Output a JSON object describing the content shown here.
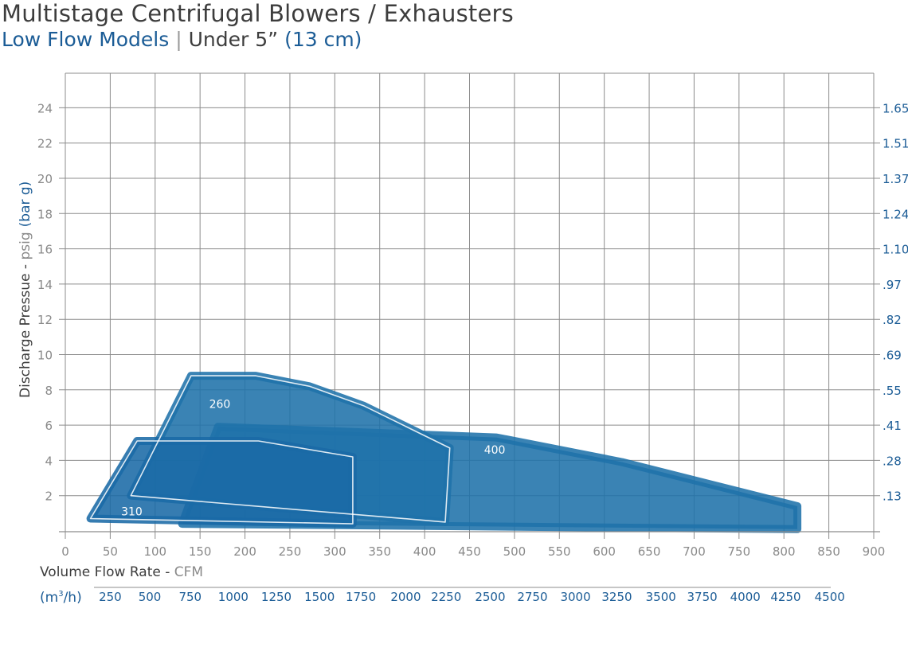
{
  "header": {
    "title": "Multistage Centrifugal Blowers / Exhausters",
    "subtitle_part1": "Low Flow Models",
    "subtitle_sep": "|",
    "subtitle_part2": "Under 5”",
    "subtitle_part3": "(13 cm)"
  },
  "colors": {
    "title": "#3d3d3d",
    "accent_blue": "#1b5c96",
    "grid": "#8c8c8c",
    "tick_text": "#8a8a8a",
    "fill_260": "#1f72aa",
    "fill_400": "#1f72aa",
    "fill_310": "#1a6aa6",
    "outline": "#ffffff"
  },
  "chart_data": {
    "type": "area",
    "title": "Multistage Centrifugal Blowers / Exhausters",
    "subtitle": "Low Flow Models | Under 5” (13 cm)",
    "xlabel": "Volume Flow Rate - ",
    "xlabel_unit": "CFM",
    "x2label": "(m³/h)",
    "ylabel": "Discharge Pressue - ",
    "ylabel_unit": "psig",
    "ylabel_unit2": "(bar g)",
    "xlim": [
      0,
      900
    ],
    "ylim": [
      0,
      26
    ],
    "x_ticks": [
      0,
      50,
      100,
      150,
      200,
      250,
      300,
      350,
      400,
      450,
      500,
      550,
      600,
      650,
      700,
      750,
      800,
      850,
      900
    ],
    "y_ticks": [
      2,
      4,
      6,
      8,
      10,
      12,
      14,
      16,
      18,
      20,
      22,
      24
    ],
    "y2_labels": [
      ".13",
      ".28",
      ".41",
      ".55",
      ".69",
      ".82",
      ".97",
      "1.10",
      "1.24",
      "1.37",
      "1.51",
      "1.65"
    ],
    "x2_ticks": [
      {
        "label": "250",
        "cfm": 50
      },
      {
        "label": "500",
        "cfm": 94
      },
      {
        "label": "750",
        "cfm": 139
      },
      {
        "label": "1000",
        "cfm": 187
      },
      {
        "label": "1250",
        "cfm": 235
      },
      {
        "label": "1500",
        "cfm": 283
      },
      {
        "label": "1750",
        "cfm": 329
      },
      {
        "label": "2000",
        "cfm": 379
      },
      {
        "label": "2250",
        "cfm": 424
      },
      {
        "label": "2500",
        "cfm": 473
      },
      {
        "label": "2750",
        "cfm": 520
      },
      {
        "label": "3000",
        "cfm": 568
      },
      {
        "label": "3250",
        "cfm": 614
      },
      {
        "label": "3500",
        "cfm": 663
      },
      {
        "label": "3750",
        "cfm": 709
      },
      {
        "label": "4000",
        "cfm": 757
      },
      {
        "label": "4250",
        "cfm": 802
      },
      {
        "label": "4500",
        "cfm": 851
      }
    ],
    "series": [
      {
        "name": "400",
        "label_at": [
          478,
          4.6
        ],
        "points": [
          [
            170,
            5.9
          ],
          [
            480,
            5.3
          ],
          [
            620,
            3.9
          ],
          [
            815,
            1.4
          ],
          [
            815,
            0.1
          ],
          [
            130,
            0.4
          ]
        ]
      },
      {
        "name": "260",
        "label_at": [
          172,
          7.2
        ],
        "points": [
          [
            140,
            8.8
          ],
          [
            212,
            8.8
          ],
          [
            272,
            8.2
          ],
          [
            332,
            7.1
          ],
          [
            428,
            4.7
          ],
          [
            423,
            0.5
          ],
          [
            73,
            2.0
          ]
        ]
      },
      {
        "name": "310",
        "label_at": [
          74,
          1.1
        ],
        "points": [
          [
            80,
            5.1
          ],
          [
            215,
            5.1
          ],
          [
            320,
            4.2
          ],
          [
            320,
            0.4
          ],
          [
            28,
            0.7
          ]
        ]
      }
    ]
  }
}
